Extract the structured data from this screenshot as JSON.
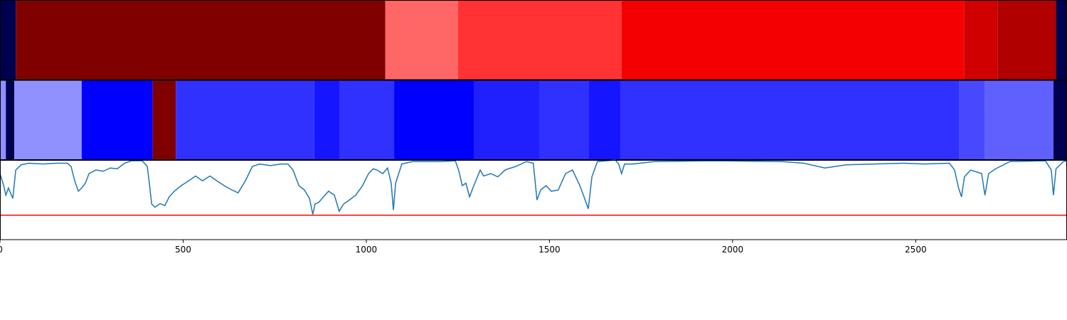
{
  "chart_data": [
    {
      "type": "segments",
      "xlim": [
        0,
        2913
      ],
      "segments": [
        {
          "start": 0,
          "end": 43,
          "color": "#000050"
        },
        {
          "start": 43,
          "end": 1052,
          "color": "#800000"
        },
        {
          "start": 1052,
          "end": 1250,
          "color": "#ff6666"
        },
        {
          "start": 1250,
          "end": 1697,
          "color": "#ff3333"
        },
        {
          "start": 1697,
          "end": 2633,
          "color": "#f50000"
        },
        {
          "start": 2633,
          "end": 2724,
          "color": "#d00000"
        },
        {
          "start": 2724,
          "end": 2883,
          "color": "#b00000"
        },
        {
          "start": 2883,
          "end": 2913,
          "color": "#000050"
        }
      ]
    },
    {
      "type": "segments",
      "xlim": [
        0,
        2913
      ],
      "segments": [
        {
          "start": 0,
          "end": 16,
          "color": "#9090ff"
        },
        {
          "start": 16,
          "end": 39,
          "color": "#000050"
        },
        {
          "start": 39,
          "end": 223,
          "color": "#9090ff"
        },
        {
          "start": 223,
          "end": 417,
          "color": "#0000ff"
        },
        {
          "start": 417,
          "end": 480,
          "color": "#800000"
        },
        {
          "start": 480,
          "end": 858,
          "color": "#3030ff"
        },
        {
          "start": 858,
          "end": 928,
          "color": "#1515ff"
        },
        {
          "start": 928,
          "end": 1076,
          "color": "#3030ff"
        },
        {
          "start": 1076,
          "end": 1295,
          "color": "#0000ff"
        },
        {
          "start": 1295,
          "end": 1472,
          "color": "#2020ff"
        },
        {
          "start": 1472,
          "end": 1608,
          "color": "#3030ff"
        },
        {
          "start": 1608,
          "end": 1695,
          "color": "#1515ff"
        },
        {
          "start": 1695,
          "end": 2619,
          "color": "#3030ff"
        },
        {
          "start": 2619,
          "end": 2689,
          "color": "#4848ff"
        },
        {
          "start": 2689,
          "end": 2876,
          "color": "#6060ff"
        },
        {
          "start": 2876,
          "end": 2913,
          "color": "#000050"
        }
      ]
    },
    {
      "type": "line",
      "xlim": [
        0,
        2913
      ],
      "ylim": [
        0,
        1
      ],
      "xticks": [
        0,
        500,
        1000,
        1500,
        2000,
        2500
      ],
      "color": "#1f77b4",
      "threshold": 0.31,
      "threshold_color": "#ff0000",
      "x": [
        0,
        10,
        16,
        23,
        35,
        43,
        58,
        78,
        117,
        155,
        184,
        194,
        204,
        214,
        223,
        233,
        243,
        262,
        282,
        301,
        320,
        340,
        359,
        388,
        402,
        408,
        414,
        423,
        437,
        450,
        462,
        476,
        495,
        515,
        534,
        553,
        573,
        592,
        612,
        631,
        650,
        670,
        689,
        709,
        738,
        767,
        786,
        800,
        816,
        831,
        845,
        854,
        860,
        870,
        883,
        897,
        913,
        926,
        938,
        951,
        971,
        990,
        1006,
        1019,
        1029,
        1045,
        1058,
        1068,
        1074,
        1080,
        1097,
        1126,
        1165,
        1204,
        1243,
        1252,
        1262,
        1272,
        1282,
        1291,
        1311,
        1320,
        1340,
        1359,
        1379,
        1408,
        1437,
        1456,
        1466,
        1476,
        1491,
        1505,
        1524,
        1544,
        1563,
        1583,
        1596,
        1606,
        1616,
        1631,
        1680,
        1689,
        1697,
        1705,
        1728,
        1786,
        1942,
        2136,
        2194,
        2252,
        2311,
        2388,
        2466,
        2524,
        2592,
        2606,
        2617,
        2625,
        2633,
        2650,
        2680,
        2689,
        2699,
        2718,
        2757,
        2854,
        2870,
        2876,
        2883,
        2903,
        2913
      ],
      "values": [
        0.83,
        0.68,
        0.56,
        0.65,
        0.52,
        0.875,
        0.94,
        0.96,
        0.95,
        0.96,
        0.96,
        0.92,
        0.74,
        0.61,
        0.65,
        0.71,
        0.83,
        0.875,
        0.86,
        0.9,
        0.89,
        0.96,
        0.99,
        0.99,
        0.92,
        0.7,
        0.45,
        0.41,
        0.455,
        0.43,
        0.54,
        0.61,
        0.68,
        0.74,
        0.8,
        0.74,
        0.8,
        0.74,
        0.68,
        0.63,
        0.59,
        0.74,
        0.92,
        0.95,
        0.93,
        0.95,
        0.95,
        0.875,
        0.68,
        0.625,
        0.52,
        0.32,
        0.45,
        0.47,
        0.54,
        0.61,
        0.56,
        0.36,
        0.45,
        0.49,
        0.56,
        0.68,
        0.83,
        0.89,
        0.875,
        0.83,
        0.9,
        0.71,
        0.375,
        0.71,
        0.95,
        0.98,
        0.98,
        0.98,
        0.99,
        0.875,
        0.68,
        0.71,
        0.54,
        0.65,
        0.875,
        0.8,
        0.83,
        0.79,
        0.875,
        0.92,
        0.98,
        0.96,
        0.5,
        0.625,
        0.68,
        0.61,
        0.625,
        0.83,
        0.875,
        0.68,
        0.52,
        0.39,
        0.79,
        0.98,
        1.0,
        0.95,
        0.83,
        0.95,
        0.95,
        0.98,
        0.99,
        0.98,
        0.96,
        0.9,
        0.94,
        0.95,
        0.96,
        0.95,
        0.96,
        0.875,
        0.65,
        0.54,
        0.79,
        0.875,
        0.83,
        0.56,
        0.83,
        0.89,
        0.98,
        0.99,
        0.875,
        0.56,
        0.89,
        0.98,
        0.99
      ]
    }
  ]
}
